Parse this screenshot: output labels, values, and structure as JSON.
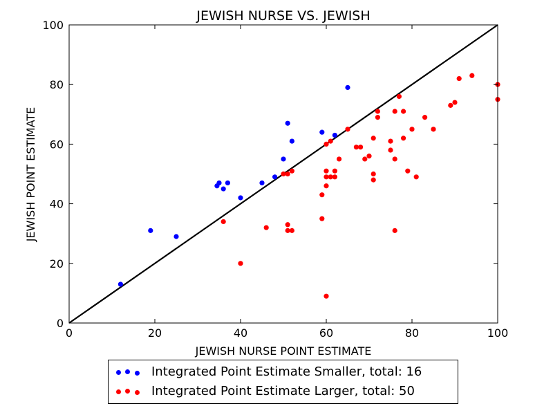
{
  "chart_data": {
    "type": "scatter",
    "title": "JEWISH NURSE VS. JEWISH",
    "xlabel": "JEWISH NURSE POINT ESTIMATE",
    "ylabel": "JEWISH POINT ESTIMATE",
    "xlim": [
      0,
      100
    ],
    "ylim": [
      0,
      100
    ],
    "xticks": [
      "0",
      "20",
      "40",
      "60",
      "80",
      "100"
    ],
    "yticks": [
      "0",
      "20",
      "40",
      "60",
      "80",
      "100"
    ],
    "grid": false,
    "legend_position": "bottom-center",
    "reference_line": {
      "from": [
        0,
        0
      ],
      "to": [
        100,
        100
      ],
      "color": "#000000"
    },
    "series": [
      {
        "name": "Integrated Point Estimate Smaller, total: 16",
        "color": "#0000ff",
        "points": [
          [
            12,
            13
          ],
          [
            19,
            31
          ],
          [
            25,
            29
          ],
          [
            34.5,
            46
          ],
          [
            35,
            47
          ],
          [
            36,
            45
          ],
          [
            37,
            47
          ],
          [
            40,
            42
          ],
          [
            45,
            47
          ],
          [
            48,
            49
          ],
          [
            50,
            55
          ],
          [
            51,
            67
          ],
          [
            52,
            61
          ],
          [
            59,
            64
          ],
          [
            62,
            63
          ],
          [
            65,
            79
          ]
        ]
      },
      {
        "name": "Integrated Point Estimate Larger, total: 50",
        "color": "#ff0000",
        "points": [
          [
            36,
            34
          ],
          [
            40,
            20
          ],
          [
            46,
            32
          ],
          [
            50,
            50
          ],
          [
            51,
            50
          ],
          [
            51,
            33
          ],
          [
            51,
            31
          ],
          [
            52,
            51
          ],
          [
            52,
            31
          ],
          [
            59,
            43
          ],
          [
            59,
            35
          ],
          [
            60,
            60
          ],
          [
            60,
            51
          ],
          [
            60,
            49
          ],
          [
            60,
            46
          ],
          [
            60,
            9
          ],
          [
            61,
            61
          ],
          [
            61,
            49
          ],
          [
            62,
            51
          ],
          [
            62,
            49
          ],
          [
            63,
            55
          ],
          [
            65,
            65
          ],
          [
            67,
            59
          ],
          [
            68,
            59
          ],
          [
            69,
            55
          ],
          [
            70,
            56
          ],
          [
            71,
            62
          ],
          [
            71,
            50
          ],
          [
            71,
            48
          ],
          [
            72,
            71
          ],
          [
            72,
            69
          ],
          [
            75,
            61
          ],
          [
            75,
            58
          ],
          [
            76,
            71
          ],
          [
            76,
            55
          ],
          [
            76,
            31
          ],
          [
            77,
            76
          ],
          [
            78,
            71
          ],
          [
            78,
            62
          ],
          [
            79,
            51
          ],
          [
            80,
            65
          ],
          [
            81,
            49
          ],
          [
            83,
            69
          ],
          [
            85,
            65
          ],
          [
            89,
            73
          ],
          [
            90,
            74
          ],
          [
            91,
            82
          ],
          [
            94,
            83
          ],
          [
            100,
            80
          ],
          [
            100,
            75
          ]
        ]
      }
    ]
  }
}
